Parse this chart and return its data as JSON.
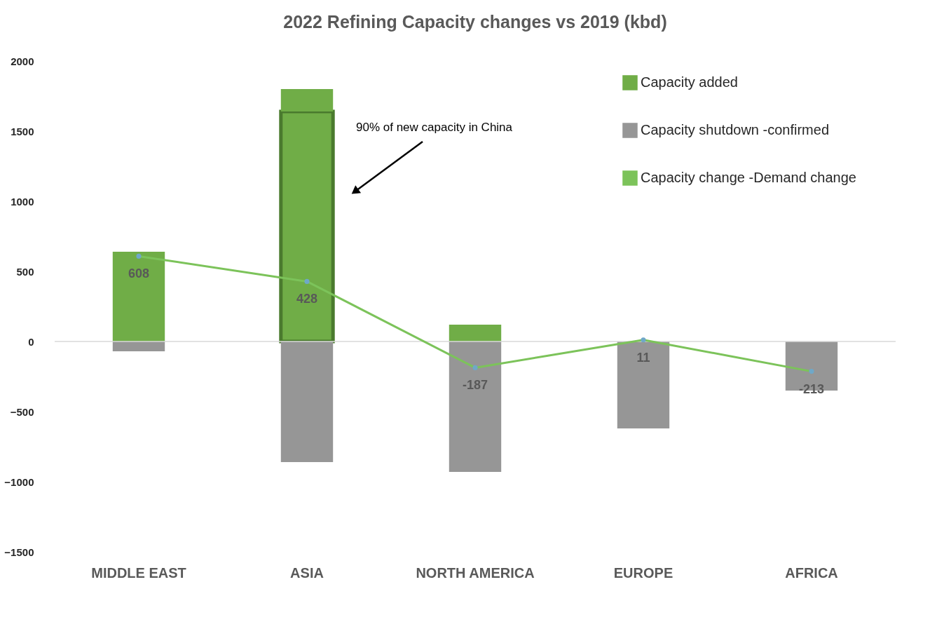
{
  "chart_data": {
    "type": "bar",
    "title": "2022 Refining Capacity changes vs 2019 (kbd)",
    "categories": [
      "MIDDLE EAST",
      "ASIA",
      "NORTH AMERICA",
      "EUROPE",
      "AFRICA"
    ],
    "stacked": true,
    "series": [
      {
        "color": "#70ad47",
        "type": "bar",
        "values": [
          null,
          1640,
          null,
          null,
          null
        ]
      },
      {
        "name": "Capacity added",
        "color": "#70ad47",
        "values": [
          640,
          160,
          120,
          null,
          null
        ]
      },
      {
        "name": "Capacity  shutdown -confirmed",
        "color": "#969696",
        "values": [
          -70,
          -860,
          -930,
          -620,
          -350
        ]
      },
      {
        "name": "Capacity change -Demand change",
        "type": "line",
        "color": "#7cc35a",
        "marker": "circle",
        "values": [
          608,
          428,
          -187,
          11,
          -213
        ],
        "value_labels": [
          "608",
          "428",
          "-187",
          "11",
          "-213"
        ]
      }
    ],
    "ylim": [
      -1500,
      2000
    ],
    "yticks": [
      -1500,
      -1000,
      -500,
      0,
      500,
      1000,
      1500,
      2000
    ],
    "ref_lines": [
      {
        "axis": "y",
        "value": 0,
        "color": "#d9d9d9"
      }
    ],
    "grid": false,
    "legend": "top right",
    "annotations": [
      "90% of new capacity in China"
    ]
  }
}
